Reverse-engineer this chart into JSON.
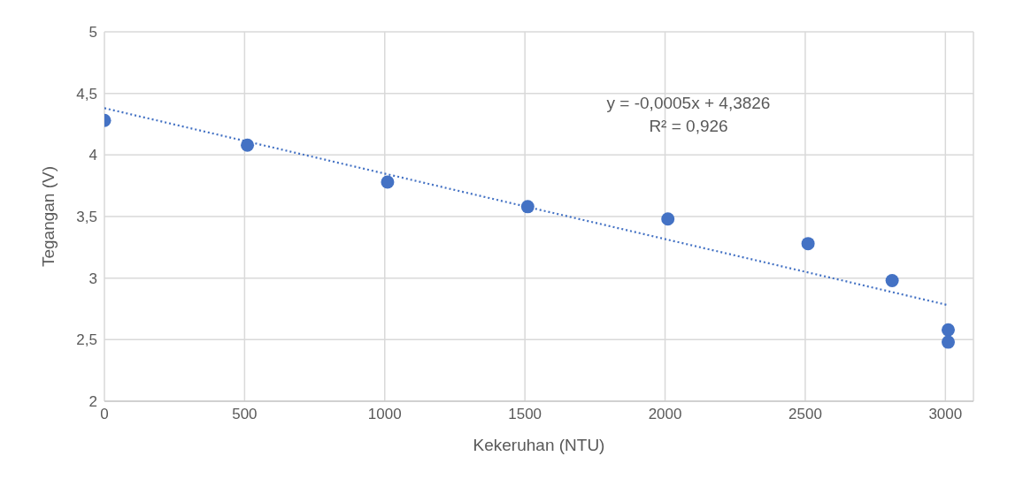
{
  "chart_data": {
    "type": "scatter",
    "xlabel": "Kekeruhan (NTU)",
    "ylabel": "Tegangan (V)",
    "xlim": [
      0,
      3100
    ],
    "xticks": [
      0,
      500,
      1000,
      1500,
      2000,
      2500,
      3000
    ],
    "ylim": [
      2,
      5
    ],
    "yticks": [
      2,
      {
        "value": 2.5,
        "label": "2,5"
      },
      3,
      {
        "value": 3.5,
        "label": "3,5"
      },
      4,
      {
        "value": 4.5,
        "label": "4,5"
      },
      5
    ],
    "grid": true,
    "legend": false,
    "marker": "circle",
    "series": [
      {
        "color": "#4472c4",
        "x": [
          0,
          510,
          1010,
          1510,
          2010,
          2510,
          2810,
          3010,
          3010
        ],
        "values": [
          4.28,
          4.08,
          3.78,
          3.58,
          3.48,
          3.28,
          2.98,
          2.58,
          2.48
        ]
      },
      {
        "type": "line",
        "color": "#4472c4",
        "x": [
          0,
          3010
        ],
        "values": [
          4.38,
          2.78
        ],
        "marker": "none",
        "line_style": "dotted"
      }
    ],
    "annotations": [
      "y = -0,0005x + 4,3826",
      "R² = 0,926"
    ]
  }
}
